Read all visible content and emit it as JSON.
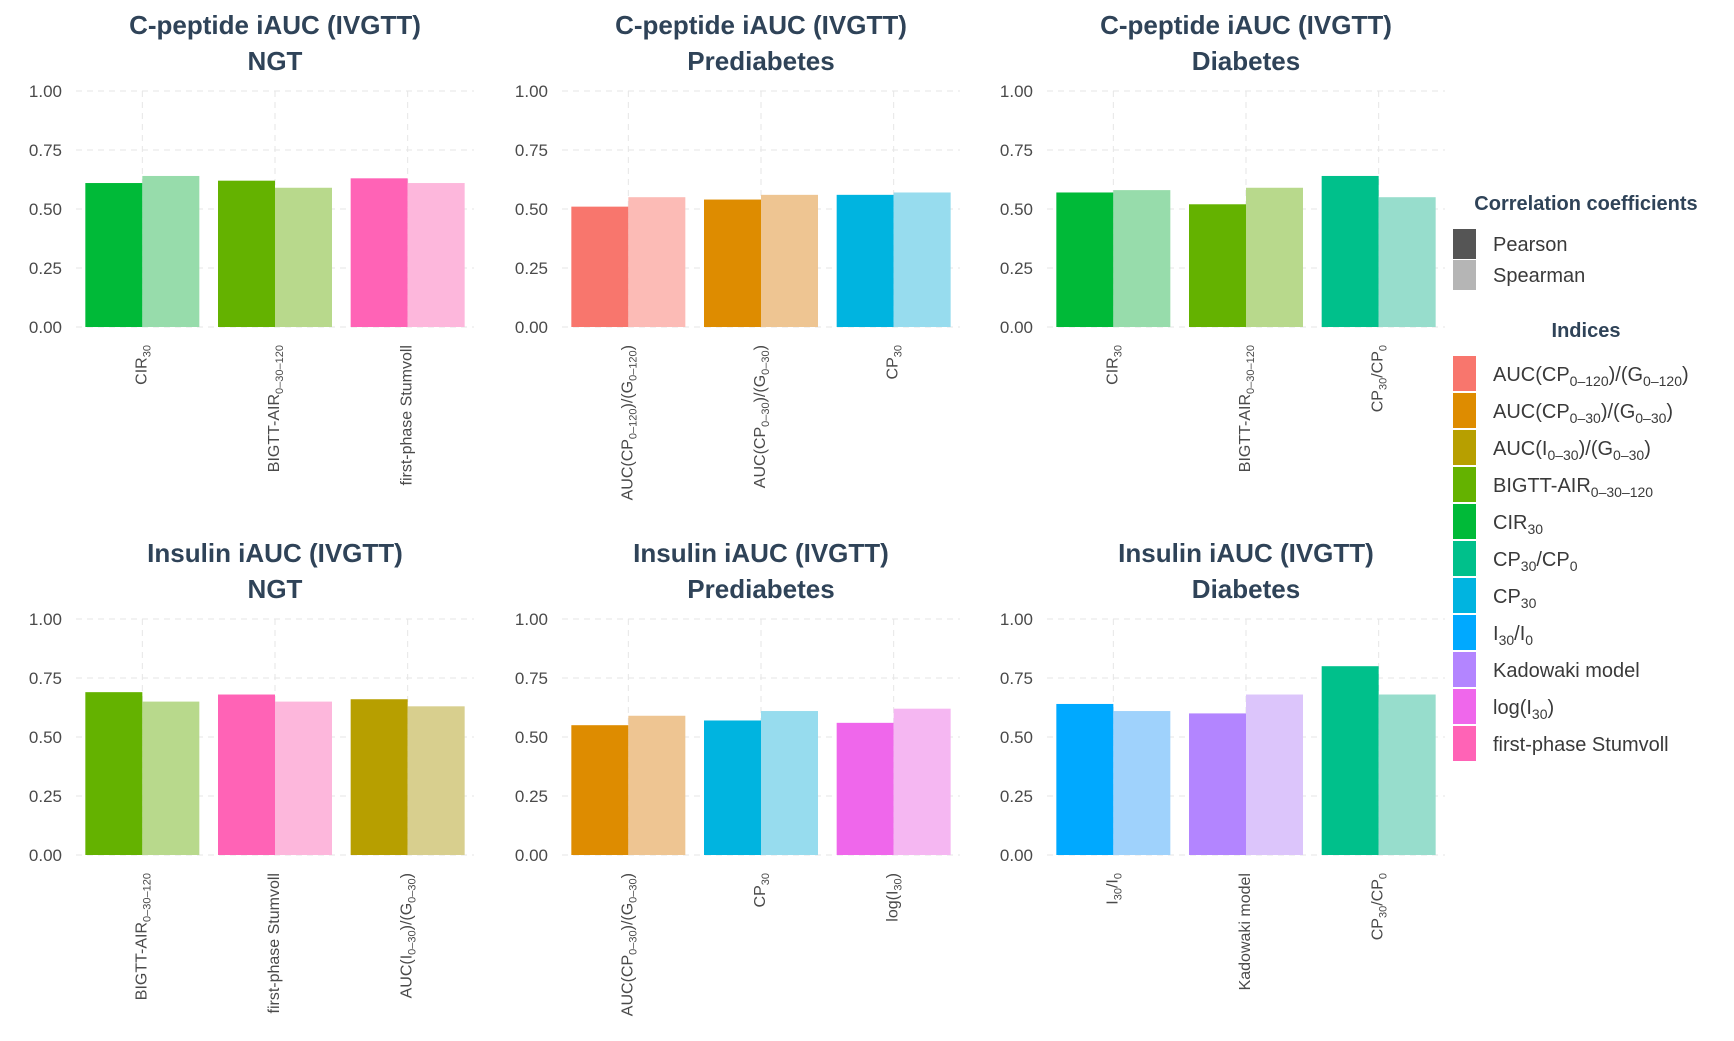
{
  "chart_data": [
    {
      "type": "bar",
      "title": [
        "C-peptide iAUC (IVGTT)",
        "NGT"
      ],
      "categories": [
        {
          "base": "CIR",
          "sub": "30"
        },
        {
          "base": "BIGTT-AIR",
          "sub": "0–30–120"
        },
        {
          "base": "first-phase Stumvoll",
          "sub": ""
        }
      ],
      "category_index": [
        "CIR30",
        "BIGTT-AIR0-30-120",
        "first-phase Stumvoll"
      ],
      "series": [
        {
          "name": "Pearson",
          "values": [
            0.61,
            0.62,
            0.63
          ]
        },
        {
          "name": "Spearman",
          "values": [
            0.64,
            0.59,
            0.61
          ]
        }
      ],
      "ylim": [
        0,
        1
      ],
      "yticks": [
        "0.00",
        "0.25",
        "0.50",
        "0.75",
        "1.00"
      ]
    },
    {
      "type": "bar",
      "title": [
        "C-peptide iAUC (IVGTT)",
        "Prediabetes"
      ],
      "categories": [
        {
          "base": "AUC(CP",
          "sub": "0–120",
          "mid": ")/(G",
          "sub2": "0–120",
          "end": ")"
        },
        {
          "base": "AUC(CP",
          "sub": "0–30",
          "mid": ")/(G",
          "sub2": "0–30",
          "end": ")"
        },
        {
          "base": "CP",
          "sub": "30"
        }
      ],
      "category_index": [
        "AUC(CP0-120)/(G0-120)",
        "AUC(CP0-30)/(G0-30)",
        "CP30"
      ],
      "series": [
        {
          "name": "Pearson",
          "values": [
            0.51,
            0.54,
            0.56
          ]
        },
        {
          "name": "Spearman",
          "values": [
            0.55,
            0.56,
            0.57
          ]
        }
      ],
      "ylim": [
        0,
        1
      ],
      "yticks": [
        "0.00",
        "0.25",
        "0.50",
        "0.75",
        "1.00"
      ]
    },
    {
      "type": "bar",
      "title": [
        "C-peptide iAUC (IVGTT)",
        "Diabetes"
      ],
      "categories": [
        {
          "base": "CIR",
          "sub": "30"
        },
        {
          "base": "BIGTT-AIR",
          "sub": "0–30–120"
        },
        {
          "base": "CP",
          "sub": "30",
          "mid": "/CP",
          "sub2": "0"
        }
      ],
      "category_index": [
        "CIR30",
        "BIGTT-AIR0-30-120",
        "CP30/CP0"
      ],
      "series": [
        {
          "name": "Pearson",
          "values": [
            0.57,
            0.52,
            0.64
          ]
        },
        {
          "name": "Spearman",
          "values": [
            0.58,
            0.59,
            0.55
          ]
        }
      ],
      "ylim": [
        0,
        1
      ],
      "yticks": [
        "0.00",
        "0.25",
        "0.50",
        "0.75",
        "1.00"
      ]
    },
    {
      "type": "bar",
      "title": [
        "Insulin iAUC (IVGTT)",
        "NGT"
      ],
      "categories": [
        {
          "base": "BIGTT-AIR",
          "sub": "0–30–120"
        },
        {
          "base": "first-phase Stumvoll",
          "sub": ""
        },
        {
          "base": "AUC(I",
          "sub": "0–30",
          "mid": ")/(G",
          "sub2": "0–30",
          "end": ")"
        }
      ],
      "category_index": [
        "BIGTT-AIR0-30-120",
        "first-phase Stumvoll",
        "AUC(I0-30)/(G0-30)"
      ],
      "series": [
        {
          "name": "Pearson",
          "values": [
            0.69,
            0.68,
            0.66
          ]
        },
        {
          "name": "Spearman",
          "values": [
            0.65,
            0.65,
            0.63
          ]
        }
      ],
      "ylim": [
        0,
        1
      ],
      "yticks": [
        "0.00",
        "0.25",
        "0.50",
        "0.75",
        "1.00"
      ]
    },
    {
      "type": "bar",
      "title": [
        "Insulin iAUC (IVGTT)",
        "Prediabetes"
      ],
      "categories": [
        {
          "base": "AUC(CP",
          "sub": "0–30",
          "mid": ")/(G",
          "sub2": "0–30",
          "end": ")"
        },
        {
          "base": "CP",
          "sub": "30"
        },
        {
          "base": "log(I",
          "sub": "30",
          "mid": ")"
        }
      ],
      "category_index": [
        "AUC(CP0-30)/(G0-30)",
        "CP30",
        "log(I30)"
      ],
      "series": [
        {
          "name": "Pearson",
          "values": [
            0.55,
            0.57,
            0.56
          ]
        },
        {
          "name": "Spearman",
          "values": [
            0.59,
            0.61,
            0.62
          ]
        }
      ],
      "ylim": [
        0,
        1
      ],
      "yticks": [
        "0.00",
        "0.25",
        "0.50",
        "0.75",
        "1.00"
      ]
    },
    {
      "type": "bar",
      "title": [
        "Insulin iAUC (IVGTT)",
        "Diabetes"
      ],
      "categories": [
        {
          "base": "I",
          "sub": "30",
          "mid": "/I",
          "sub2": "0"
        },
        {
          "base": "Kadowaki model",
          "sub": ""
        },
        {
          "base": "CP",
          "sub": "30",
          "mid": "/CP",
          "sub2": "0"
        }
      ],
      "category_index": [
        "I30/I0",
        "Kadowaki model",
        "CP30/CP0"
      ],
      "series": [
        {
          "name": "Pearson",
          "values": [
            0.64,
            0.6,
            0.8
          ]
        },
        {
          "name": "Spearman",
          "values": [
            0.61,
            0.68,
            0.68
          ]
        }
      ],
      "ylim": [
        0,
        1
      ],
      "yticks": [
        "0.00",
        "0.25",
        "0.50",
        "0.75",
        "1.00"
      ]
    }
  ],
  "legend": {
    "placement": "right",
    "coef_title": "Correlation coefficients",
    "coef_items": [
      {
        "label": "Pearson",
        "color": "#555555"
      },
      {
        "label": "Spearman",
        "color": "#b5b5b5"
      }
    ],
    "index_title": "Indices",
    "index_items": [
      {
        "id": "AUC(CP0-120)/(G0-120)",
        "label": {
          "base": "AUC(CP",
          "sub": "0–120",
          "mid": ")/(G",
          "sub2": "0–120",
          "end": ")"
        },
        "color": "#f8766d",
        "light": "#fcbbb6"
      },
      {
        "id": "AUC(CP0-30)/(G0-30)",
        "label": {
          "base": "AUC(CP",
          "sub": "0–30",
          "mid": ")/(G",
          "sub2": "0–30",
          "end": ")"
        },
        "color": "#de8c00",
        "light": "#eec592"
      },
      {
        "id": "AUC(I0-30)/(G0-30)",
        "label": {
          "base": "AUC(I",
          "sub": "0–30",
          "mid": ")/(G",
          "sub2": "0–30",
          "end": ")"
        },
        "color": "#b79f00",
        "light": "#d8cf8e"
      },
      {
        "id": "BIGTT-AIR0-30-120",
        "label": {
          "base": "BIGTT-AIR",
          "sub": "0–30–120"
        },
        "color": "#64b200",
        "light": "#b8d98c"
      },
      {
        "id": "CIR30",
        "label": {
          "base": "CIR",
          "sub": "30"
        },
        "color": "#00ba38",
        "light": "#97dcab"
      },
      {
        "id": "CP30/CP0",
        "label": {
          "base": "CP",
          "sub": "30",
          "mid": "/CP",
          "sub2": "0"
        },
        "color": "#00c08b",
        "light": "#97ddcc"
      },
      {
        "id": "CP30",
        "label": {
          "base": "CP",
          "sub": "30"
        },
        "color": "#00b4e0",
        "light": "#97dcee"
      },
      {
        "id": "I30/I0",
        "label": {
          "base": "I",
          "sub": "30",
          "mid": "/I",
          "sub2": "0"
        },
        "color": "#00a9ff",
        "light": "#9fd2fc"
      },
      {
        "id": "Kadowaki model",
        "label": {
          "base": "Kadowaki model"
        },
        "color": "#b385ff",
        "light": "#dcc5fb"
      },
      {
        "id": "log(I30)",
        "label": {
          "base": "log(I",
          "sub": "30",
          "mid": ")"
        },
        "color": "#ef67eb",
        "light": "#f5b7f2"
      },
      {
        "id": "first-phase Stumvoll",
        "label": {
          "base": "first-phase Stumvoll"
        },
        "color": "#ff63b6",
        "light": "#fdb7dc"
      }
    ]
  }
}
